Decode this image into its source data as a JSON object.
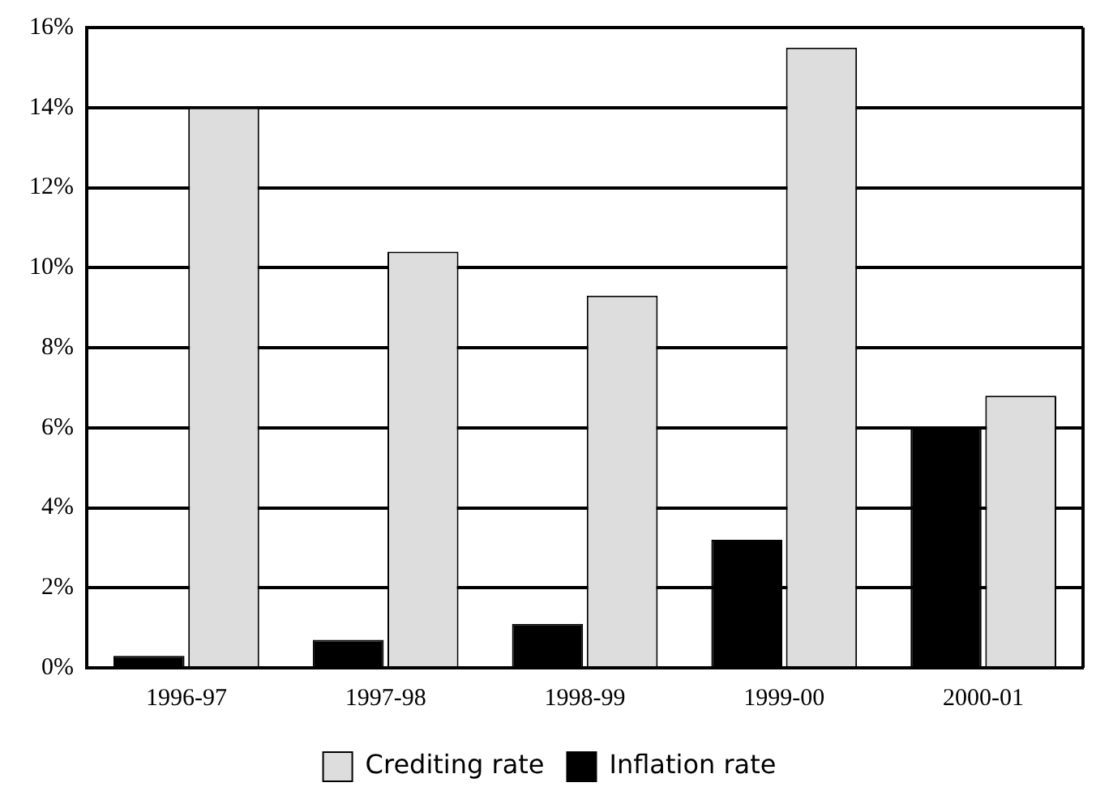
{
  "chart_data": {
    "type": "bar",
    "categories": [
      "1996-97",
      "1997-98",
      "1998-99",
      "1999-00",
      "2000-01"
    ],
    "series": [
      {
        "name": "Inflation rate",
        "color": "#000000",
        "values": [
          0.3,
          0.7,
          1.1,
          3.2,
          6.0
        ]
      },
      {
        "name": "Crediting rate",
        "color": "#dddddd",
        "values": [
          14.0,
          10.4,
          9.3,
          15.5,
          6.8
        ]
      }
    ],
    "ylim": [
      0,
      16
    ],
    "yticks": [
      {
        "value": 0,
        "label": "0%"
      },
      {
        "value": 2,
        "label": "2%"
      },
      {
        "value": 4,
        "label": "4%"
      },
      {
        "value": 6,
        "label": "6%"
      },
      {
        "value": 8,
        "label": "8%"
      },
      {
        "value": 10,
        "label": "10%"
      },
      {
        "value": 12,
        "label": "12%"
      },
      {
        "value": 14,
        "label": "14%"
      },
      {
        "value": 16,
        "label": "16%"
      }
    ],
    "grid": "y",
    "legend": "bottom"
  }
}
